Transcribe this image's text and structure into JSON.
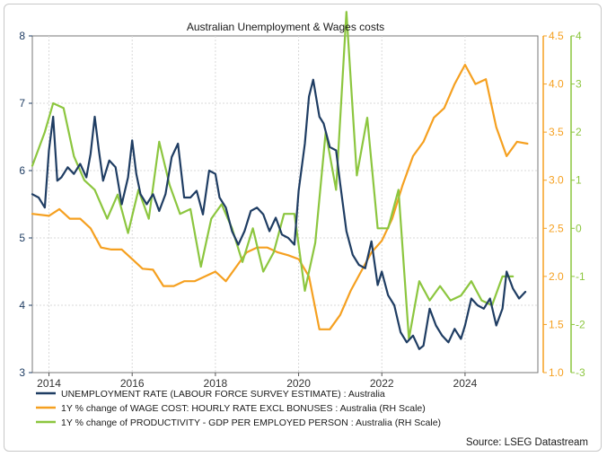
{
  "chart_data": {
    "type": "line",
    "title": "Australian Unemployment & Wages costs",
    "source": "Source: LSEG Datastream",
    "x_ticks": [
      {
        "value": 2014,
        "label": "2014"
      },
      {
        "value": 2016,
        "label": "2016"
      },
      {
        "value": 2018,
        "label": "2018"
      },
      {
        "value": 2020,
        "label": "2020"
      },
      {
        "value": 2022,
        "label": "2022"
      },
      {
        "value": 2024,
        "label": "2024"
      }
    ],
    "xlim": [
      2013.6,
      2025.75
    ],
    "axes": {
      "left": {
        "ylim": [
          3,
          8
        ],
        "ticks": [
          "3",
          "4",
          "5",
          "6",
          "7",
          "8"
        ],
        "color": "#1f3d63"
      },
      "right_inner": {
        "ylim": [
          1.0,
          4.5
        ],
        "ticks": [
          "1.0",
          "1.5",
          "2.0",
          "2.5",
          "3.0",
          "3.5",
          "4.0",
          "4.5"
        ],
        "color": "#f5a020"
      },
      "right_outer": {
        "ylim": [
          -3,
          4
        ],
        "ticks": [
          "-3",
          "-2",
          "-1",
          "0",
          "1",
          "2",
          "3",
          "4"
        ],
        "color": "#8cc63f"
      }
    },
    "series": [
      {
        "name": "UNEMPLOYMENT RATE (LABOUR FORCE SURVEY ESTIMATE) : Australia",
        "axis": "left",
        "color": "#1f3d63",
        "x": [
          2013.6,
          2013.75,
          2013.9,
          2014.0,
          2014.1,
          2014.2,
          2014.3,
          2014.45,
          2014.6,
          2014.75,
          2014.9,
          2015.0,
          2015.1,
          2015.2,
          2015.3,
          2015.45,
          2015.6,
          2015.75,
          2015.9,
          2016.0,
          2016.1,
          2016.2,
          2016.35,
          2016.5,
          2016.65,
          2016.8,
          2016.95,
          2017.1,
          2017.25,
          2017.4,
          2017.55,
          2017.7,
          2017.85,
          2018.0,
          2018.1,
          2018.25,
          2018.4,
          2018.55,
          2018.7,
          2018.85,
          2019.0,
          2019.15,
          2019.3,
          2019.45,
          2019.6,
          2019.75,
          2019.9,
          2020.0,
          2020.15,
          2020.25,
          2020.35,
          2020.5,
          2020.6,
          2020.75,
          2020.9,
          2021.0,
          2021.15,
          2021.3,
          2021.45,
          2021.6,
          2021.75,
          2021.9,
          2022.0,
          2022.15,
          2022.3,
          2022.45,
          2022.6,
          2022.75,
          2022.9,
          2023.0,
          2023.15,
          2023.3,
          2023.45,
          2023.6,
          2023.75,
          2023.9,
          2024.0,
          2024.15,
          2024.3,
          2024.45,
          2024.6,
          2024.75,
          2024.9,
          2025.0,
          2025.15,
          2025.3,
          2025.45
        ],
        "values": [
          5.65,
          5.6,
          5.45,
          6.3,
          6.8,
          5.85,
          5.9,
          6.05,
          5.95,
          6.1,
          5.9,
          6.25,
          6.8,
          6.3,
          5.85,
          6.15,
          6.05,
          5.5,
          5.9,
          6.45,
          5.95,
          5.65,
          5.5,
          5.65,
          5.4,
          5.65,
          6.2,
          6.4,
          5.6,
          5.6,
          5.7,
          5.35,
          6.0,
          5.95,
          5.6,
          5.45,
          5.1,
          4.9,
          5.1,
          5.4,
          5.45,
          5.35,
          5.1,
          5.3,
          5.05,
          5.0,
          4.9,
          5.7,
          6.4,
          7.1,
          7.35,
          6.8,
          6.7,
          6.35,
          6.3,
          5.8,
          5.1,
          4.75,
          4.6,
          4.55,
          4.95,
          4.3,
          4.5,
          4.15,
          4.0,
          3.6,
          3.45,
          3.55,
          3.35,
          3.4,
          3.95,
          3.7,
          3.55,
          3.45,
          3.65,
          3.5,
          3.7,
          4.1,
          4.0,
          3.95,
          4.1,
          3.7,
          3.95,
          4.5,
          4.25,
          4.1,
          4.2
        ]
      },
      {
        "name": "1Y % change of WAGE COST: HOURLY RATE EXCL BONUSES : Australia (RH Scale)",
        "axis": "right_inner",
        "color": "#f5a020",
        "x": [
          2013.6,
          2014.0,
          2014.25,
          2014.5,
          2014.75,
          2015.0,
          2015.25,
          2015.5,
          2015.75,
          2016.0,
          2016.25,
          2016.5,
          2016.75,
          2017.0,
          2017.25,
          2017.5,
          2017.75,
          2018.0,
          2018.25,
          2018.5,
          2018.75,
          2019.0,
          2019.25,
          2019.5,
          2019.75,
          2020.0,
          2020.25,
          2020.5,
          2020.75,
          2021.0,
          2021.25,
          2021.5,
          2021.75,
          2022.0,
          2022.25,
          2022.5,
          2022.75,
          2023.0,
          2023.25,
          2023.5,
          2023.75,
          2024.0,
          2024.25,
          2024.5,
          2024.75,
          2025.0,
          2025.25,
          2025.5
        ],
        "values": [
          2.65,
          2.63,
          2.7,
          2.6,
          2.6,
          2.5,
          2.3,
          2.28,
          2.28,
          2.18,
          2.08,
          2.07,
          1.9,
          1.9,
          1.95,
          1.95,
          2.0,
          2.05,
          1.95,
          2.1,
          2.25,
          2.3,
          2.3,
          2.25,
          2.22,
          2.18,
          2.0,
          1.45,
          1.45,
          1.6,
          1.85,
          2.05,
          2.25,
          2.37,
          2.6,
          2.95,
          3.25,
          3.4,
          3.65,
          3.75,
          4.0,
          4.2,
          4.0,
          4.05,
          3.55,
          3.25,
          3.4,
          3.38
        ]
      },
      {
        "name": "1Y % change of PRODUCTIVITY - GDP PER EMPLOYED PERSON : Australia (RH Scale)",
        "axis": "right_outer",
        "color": "#8cc63f",
        "x": [
          2013.6,
          2013.9,
          2014.1,
          2014.35,
          2014.6,
          2014.85,
          2015.1,
          2015.4,
          2015.65,
          2015.9,
          2016.15,
          2016.4,
          2016.65,
          2016.9,
          2017.15,
          2017.4,
          2017.65,
          2017.9,
          2018.15,
          2018.4,
          2018.65,
          2018.9,
          2019.15,
          2019.4,
          2019.65,
          2019.9,
          2020.15,
          2020.4,
          2020.65,
          2020.9,
          2021.15,
          2021.4,
          2021.65,
          2021.9,
          2022.15,
          2022.4,
          2022.65,
          2022.9,
          2023.15,
          2023.4,
          2023.65,
          2023.9,
          2024.15,
          2024.4,
          2024.65,
          2024.9,
          2025.15
        ],
        "values": [
          1.3,
          2.0,
          2.6,
          2.5,
          1.5,
          1.0,
          0.8,
          0.2,
          0.7,
          -0.1,
          0.8,
          0.2,
          1.8,
          0.9,
          0.3,
          0.4,
          -0.8,
          0.2,
          0.5,
          0.0,
          -0.7,
          0.0,
          -0.9,
          -0.5,
          0.3,
          0.3,
          -1.3,
          -0.3,
          2.0,
          0.8,
          4.5,
          1.1,
          2.3,
          0.0,
          0.0,
          0.8,
          -2.3,
          -1.1,
          -1.5,
          -1.2,
          -1.5,
          -1.4,
          -1.1,
          -1.5,
          -1.6,
          -1.0,
          -1.0
        ]
      }
    ]
  }
}
